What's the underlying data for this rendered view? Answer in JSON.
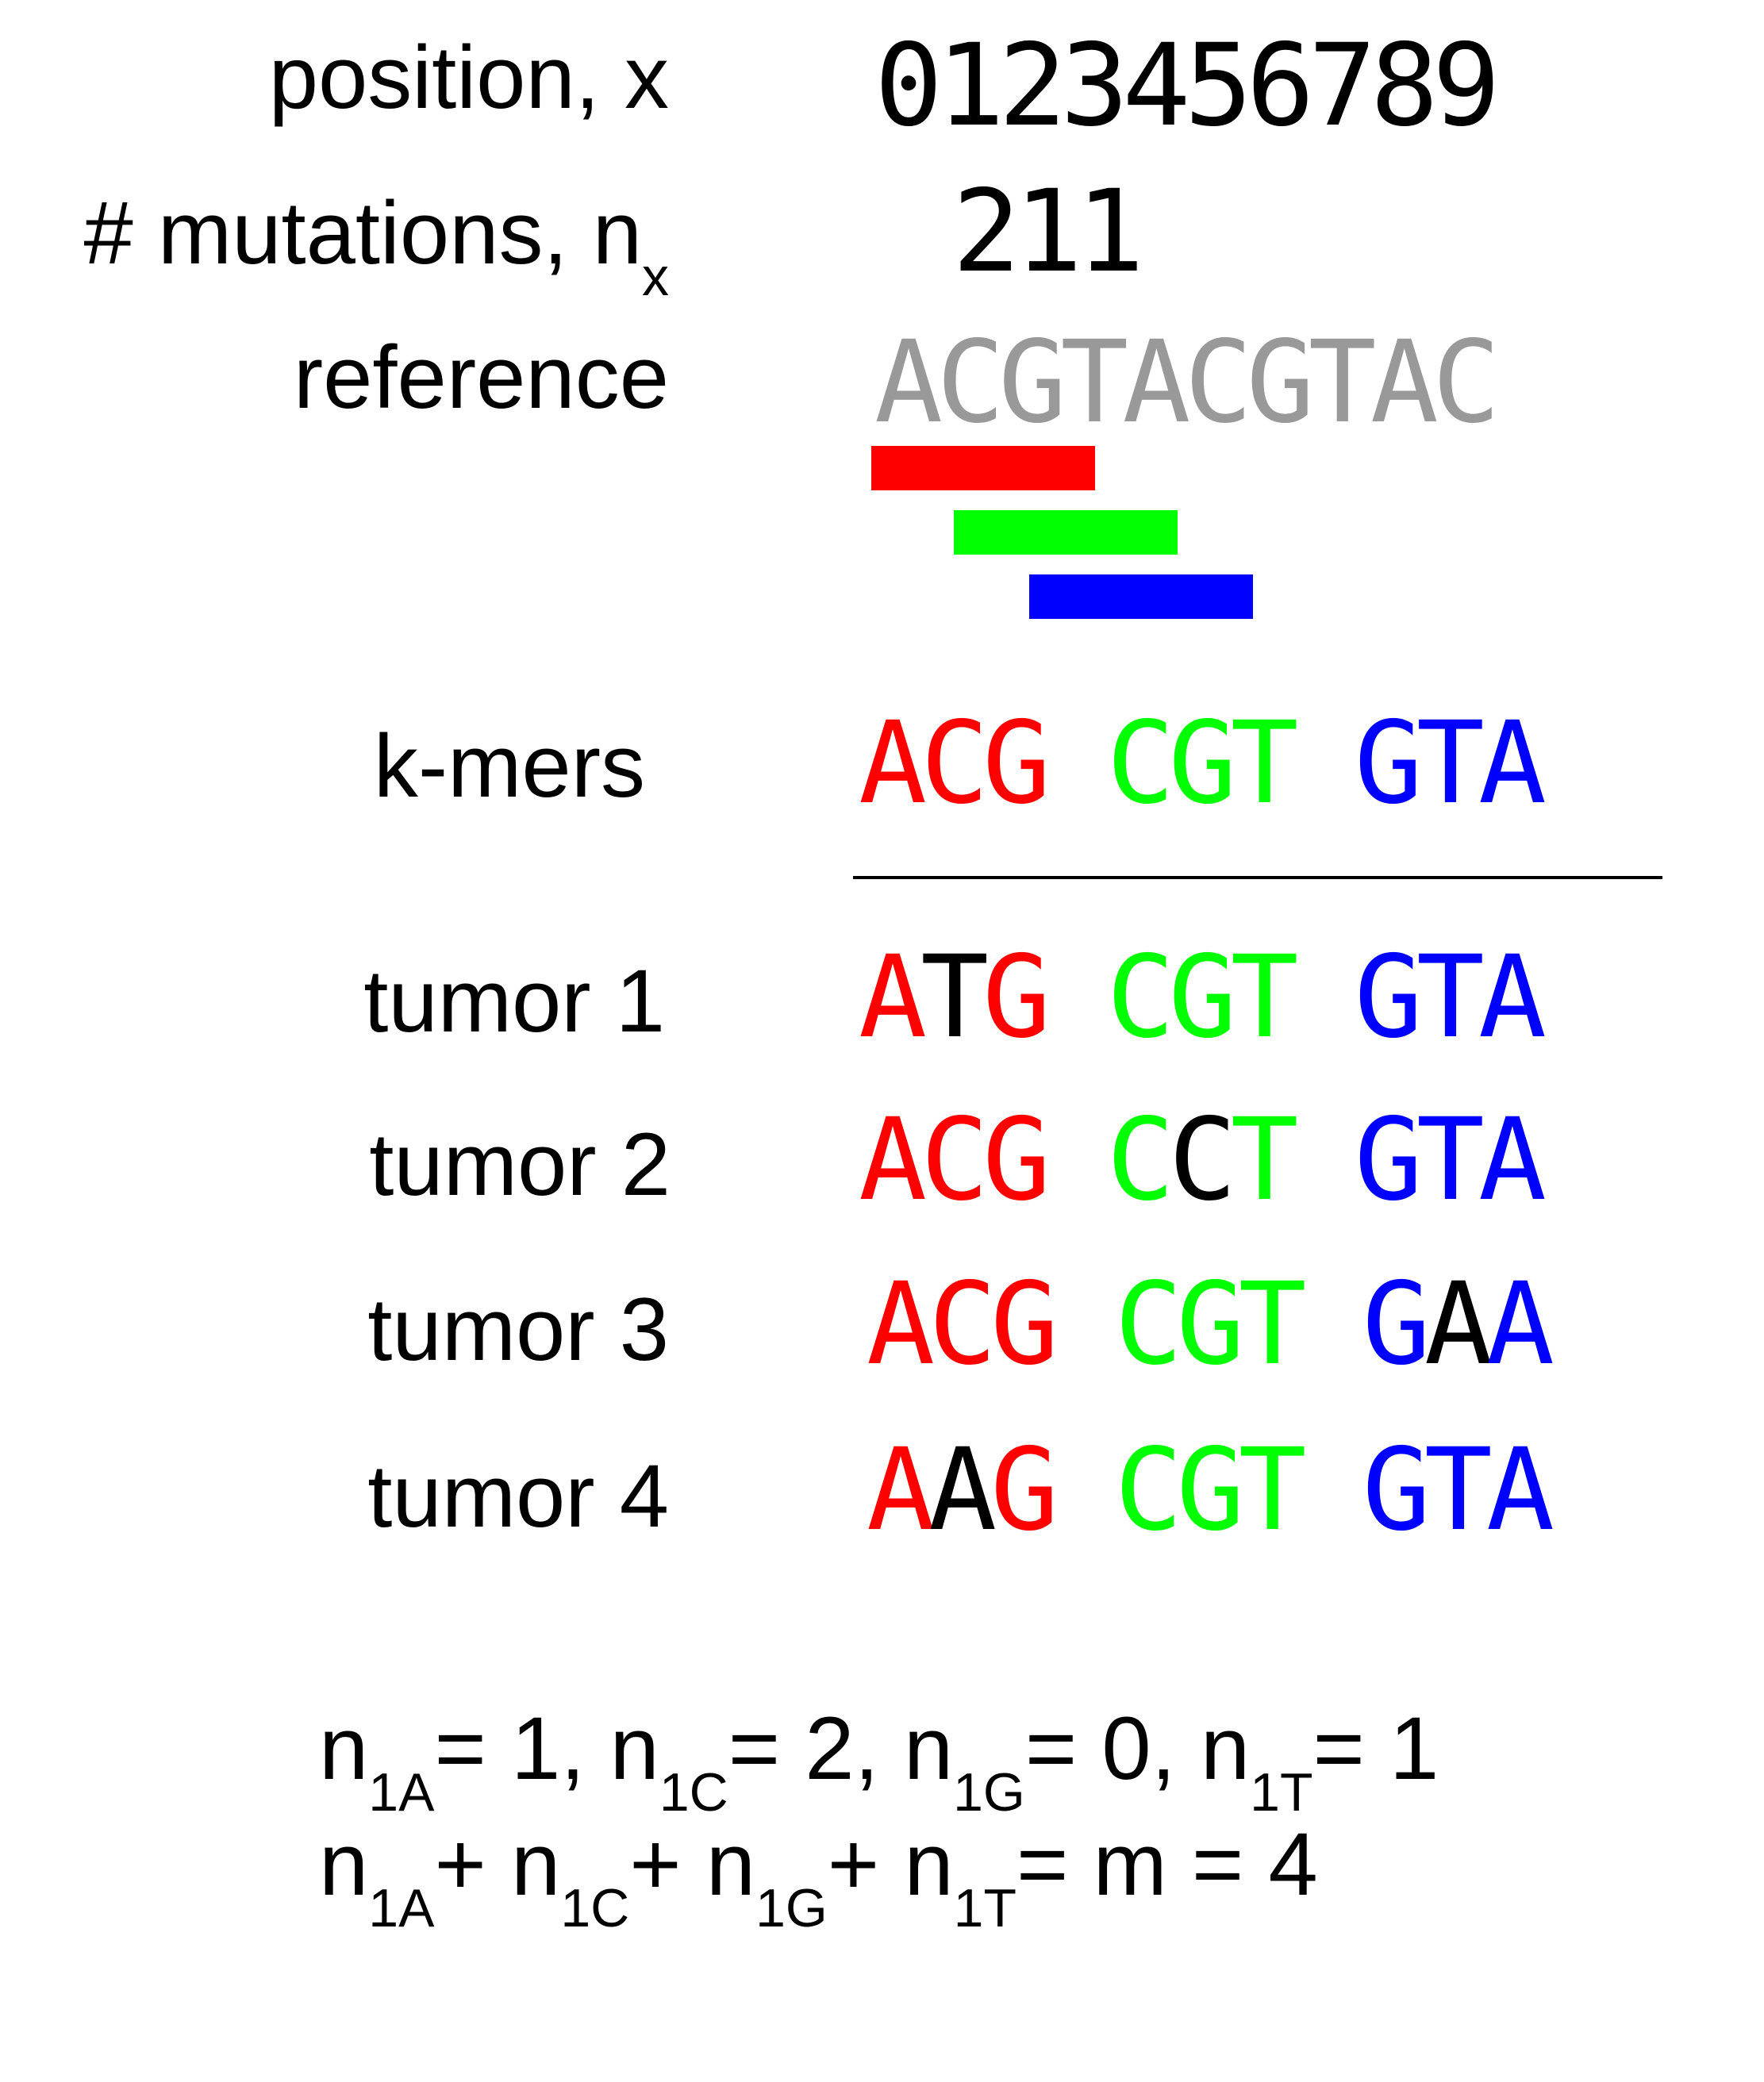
{
  "labels": {
    "position": "position, x",
    "mutations_prefix": "# mutations, n",
    "mutations_sub": "x",
    "reference": "reference",
    "kmers": "k-mers",
    "tumors": [
      "tumor 1",
      "tumor 2",
      "tumor 3",
      "tumor 4"
    ]
  },
  "positions": "0123456789",
  "mutation_counts": "211",
  "reference_seq": "ACGTACGTAC",
  "colors": {
    "kmer1": "#ff0000",
    "kmer2": "#00ff00",
    "kmer3": "#0000ff",
    "mutated": "#000000",
    "reference": "#999999"
  },
  "kmers": [
    "ACG",
    "CGT",
    "GTA"
  ],
  "tumor_rows": [
    {
      "kmers": [
        "ATG",
        "CGT",
        "GTA"
      ],
      "mutated": [
        [
          1
        ],
        [],
        []
      ]
    },
    {
      "kmers": [
        "ACG",
        "CCT",
        "GTA"
      ],
      "mutated": [
        [],
        [
          1
        ],
        []
      ]
    },
    {
      "kmers": [
        "ACG",
        "CGT",
        "GAA"
      ],
      "mutated": [
        [],
        [],
        [
          1
        ]
      ]
    },
    {
      "kmers": [
        "AAG",
        "CGT",
        "GTA"
      ],
      "mutated": [
        [
          1
        ],
        [],
        []
      ]
    }
  ],
  "equations": {
    "line1": [
      {
        "n": "n",
        "sub": "1A",
        "rest": "= 1, "
      },
      {
        "n": "n",
        "sub": "1C",
        "rest": "= 2, "
      },
      {
        "n": "n",
        "sub": "1G",
        "rest": "= 0, "
      },
      {
        "n": "n",
        "sub": "1T",
        "rest": "= 1"
      }
    ],
    "line2": [
      {
        "n": "n",
        "sub": "1A",
        "rest": "+ "
      },
      {
        "n": "n",
        "sub": "1C",
        "rest": "+ "
      },
      {
        "n": "n",
        "sub": "1G",
        "rest": "+ "
      },
      {
        "n": "n",
        "sub": "1T",
        "rest": "= m = 4"
      }
    ]
  }
}
